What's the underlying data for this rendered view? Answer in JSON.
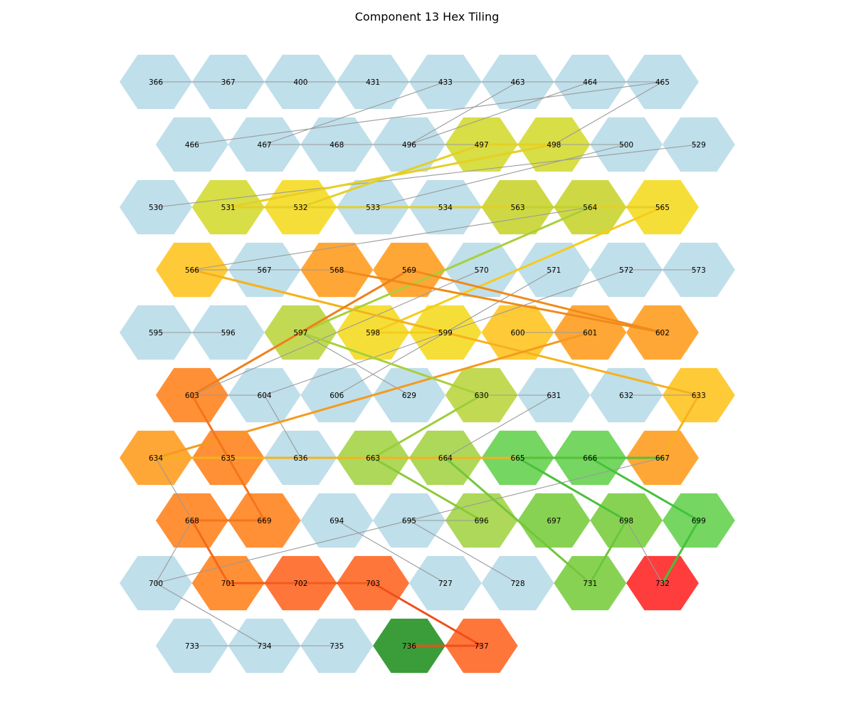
{
  "title": "Component 13 Hex Tiling",
  "colors": {
    "blue": "#bcdde9",
    "yellow": "#f5dc2e",
    "olive": "#d6dc3c",
    "olive2": "#cbd63b",
    "lime": "#bfd84a",
    "lime2": "#a9d650",
    "green": "#6ed45a",
    "green2": "#82d04a",
    "gold": "#ffc72c",
    "orange": "#ffa22b",
    "orange2": "#ff8a2b",
    "redorange": "#ff6f30",
    "red": "#ff3333",
    "darkgreen": "#2f982f"
  },
  "rows": [
    {
      "offset": false,
      "cells": [
        {
          "id": "366",
          "color": "blue"
        },
        {
          "id": "367",
          "color": "blue"
        },
        {
          "id": "400",
          "color": "blue"
        },
        {
          "id": "431",
          "color": "blue"
        },
        {
          "id": "433",
          "color": "blue"
        },
        {
          "id": "463",
          "color": "blue"
        },
        {
          "id": "464",
          "color": "blue"
        },
        {
          "id": "465",
          "color": "blue"
        }
      ]
    },
    {
      "offset": true,
      "cells": [
        {
          "id": "466",
          "color": "blue"
        },
        {
          "id": "467",
          "color": "blue"
        },
        {
          "id": "468",
          "color": "blue"
        },
        {
          "id": "496",
          "color": "blue"
        },
        {
          "id": "497",
          "color": "olive"
        },
        {
          "id": "498",
          "color": "olive"
        },
        {
          "id": "500",
          "color": "blue"
        },
        {
          "id": "529",
          "color": "blue"
        }
      ]
    },
    {
      "offset": false,
      "cells": [
        {
          "id": "530",
          "color": "blue"
        },
        {
          "id": "531",
          "color": "olive"
        },
        {
          "id": "532",
          "color": "yellow"
        },
        {
          "id": "533",
          "color": "blue"
        },
        {
          "id": "534",
          "color": "blue"
        },
        {
          "id": "563",
          "color": "olive2"
        },
        {
          "id": "564",
          "color": "olive2"
        },
        {
          "id": "565",
          "color": "yellow"
        }
      ]
    },
    {
      "offset": true,
      "cells": [
        {
          "id": "566",
          "color": "gold"
        },
        {
          "id": "567",
          "color": "blue"
        },
        {
          "id": "568",
          "color": "orange"
        },
        {
          "id": "569",
          "color": "orange"
        },
        {
          "id": "570",
          "color": "blue"
        },
        {
          "id": "571",
          "color": "blue"
        },
        {
          "id": "572",
          "color": "blue"
        },
        {
          "id": "573",
          "color": "blue"
        }
      ]
    },
    {
      "offset": false,
      "cells": [
        {
          "id": "595",
          "color": "blue"
        },
        {
          "id": "596",
          "color": "blue"
        },
        {
          "id": "597",
          "color": "lime"
        },
        {
          "id": "598",
          "color": "yellow"
        },
        {
          "id": "599",
          "color": "yellow"
        },
        {
          "id": "600",
          "color": "gold"
        },
        {
          "id": "601",
          "color": "orange"
        },
        {
          "id": "602",
          "color": "orange"
        }
      ]
    },
    {
      "offset": true,
      "cells": [
        {
          "id": "603",
          "color": "orange2"
        },
        {
          "id": "604",
          "color": "blue"
        },
        {
          "id": "606",
          "color": "blue"
        },
        {
          "id": "629",
          "color": "blue"
        },
        {
          "id": "630",
          "color": "lime"
        },
        {
          "id": "631",
          "color": "blue"
        },
        {
          "id": "632",
          "color": "blue"
        },
        {
          "id": "633",
          "color": "gold"
        }
      ]
    },
    {
      "offset": false,
      "cells": [
        {
          "id": "634",
          "color": "orange"
        },
        {
          "id": "635",
          "color": "orange2"
        },
        {
          "id": "636",
          "color": "blue"
        },
        {
          "id": "663",
          "color": "lime2"
        },
        {
          "id": "664",
          "color": "lime2"
        },
        {
          "id": "665",
          "color": "green"
        },
        {
          "id": "666",
          "color": "green"
        },
        {
          "id": "667",
          "color": "orange"
        }
      ]
    },
    {
      "offset": true,
      "cells": [
        {
          "id": "668",
          "color": "orange2"
        },
        {
          "id": "669",
          "color": "orange2"
        },
        {
          "id": "694",
          "color": "blue"
        },
        {
          "id": "695",
          "color": "blue"
        },
        {
          "id": "696",
          "color": "lime2"
        },
        {
          "id": "697",
          "color": "green2"
        },
        {
          "id": "698",
          "color": "green2"
        },
        {
          "id": "699",
          "color": "green"
        }
      ]
    },
    {
      "offset": false,
      "cells": [
        {
          "id": "700",
          "color": "blue"
        },
        {
          "id": "701",
          "color": "orange2"
        },
        {
          "id": "702",
          "color": "redorange"
        },
        {
          "id": "703",
          "color": "redorange"
        },
        {
          "id": "727",
          "color": "blue"
        },
        {
          "id": "728",
          "color": "blue"
        },
        {
          "id": "731",
          "color": "green2"
        },
        {
          "id": "732",
          "color": "red"
        }
      ]
    },
    {
      "offset": true,
      "cells": [
        {
          "id": "733",
          "color": "blue"
        },
        {
          "id": "734",
          "color": "blue"
        },
        {
          "id": "735",
          "color": "blue"
        },
        {
          "id": "736",
          "color": "darkgreen"
        },
        {
          "id": "737",
          "color": "redorange"
        }
      ]
    }
  ],
  "edges_gray": [
    [
      "366",
      "400"
    ],
    [
      "367",
      "465"
    ],
    [
      "431",
      "464"
    ],
    [
      "433",
      "467"
    ],
    [
      "463",
      "496"
    ],
    [
      "464",
      "496"
    ],
    [
      "465",
      "466"
    ],
    [
      "465",
      "498"
    ],
    [
      "467",
      "500"
    ],
    [
      "530",
      "529"
    ],
    [
      "533",
      "500"
    ],
    [
      "566",
      "564"
    ],
    [
      "566",
      "567"
    ],
    [
      "567",
      "568"
    ],
    [
      "570",
      "603"
    ],
    [
      "571",
      "606"
    ],
    [
      "572",
      "604"
    ],
    [
      "572",
      "573"
    ],
    [
      "595",
      "596"
    ],
    [
      "597",
      "629"
    ],
    [
      "600",
      "601"
    ],
    [
      "604",
      "603"
    ],
    [
      "604",
      "636"
    ],
    [
      "630",
      "631"
    ],
    [
      "631",
      "664"
    ],
    [
      "632",
      "633"
    ],
    [
      "634",
      "668"
    ],
    [
      "668",
      "700"
    ],
    [
      "700",
      "667"
    ],
    [
      "700",
      "734"
    ],
    [
      "694",
      "727"
    ],
    [
      "695",
      "696"
    ],
    [
      "695",
      "728"
    ],
    [
      "698",
      "732"
    ],
    [
      "733",
      "735"
    ]
  ],
  "edges_colored": [
    [
      "531",
      "498",
      "#e6cf25"
    ],
    [
      "532",
      "497",
      "#e6cf25"
    ],
    [
      "497",
      "498",
      "#e6cf25"
    ],
    [
      "531",
      "565",
      "#e6cf25"
    ],
    [
      "534",
      "565",
      "#e6cf25"
    ],
    [
      "563",
      "564",
      "#c3d22a"
    ],
    [
      "597",
      "564",
      "#a8cf3a"
    ],
    [
      "598",
      "565",
      "#f5cc1a"
    ],
    [
      "566",
      "599",
      "#f5c320"
    ],
    [
      "566",
      "633",
      "#f5b21e"
    ],
    [
      "598",
      "599",
      "#f5cc1a"
    ],
    [
      "568",
      "602",
      "#f08a1a"
    ],
    [
      "569",
      "602",
      "#f08a1a"
    ],
    [
      "569",
      "603",
      "#f07f1a"
    ],
    [
      "601",
      "634",
      "#f59a1e"
    ],
    [
      "603",
      "669",
      "#f5741a"
    ],
    [
      "597",
      "630",
      "#a8cf3a"
    ],
    [
      "630",
      "663",
      "#9ccd3a"
    ],
    [
      "634",
      "667",
      "#f5b21e"
    ],
    [
      "633",
      "667",
      "#f5b21e"
    ],
    [
      "663",
      "696",
      "#8ac93a"
    ],
    [
      "664",
      "731",
      "#74c63a"
    ],
    [
      "665",
      "698",
      "#4dbf3a"
    ],
    [
      "665",
      "667",
      "#55c23a"
    ],
    [
      "666",
      "699",
      "#44c23a"
    ],
    [
      "698",
      "731",
      "#6dc63a"
    ],
    [
      "699",
      "732",
      "#44c23a"
    ],
    [
      "668",
      "669",
      "#f5741a"
    ],
    [
      "668",
      "701",
      "#f5681a"
    ],
    [
      "701",
      "703",
      "#f55a1a"
    ],
    [
      "703",
      "737",
      "#f04e1a"
    ],
    [
      "736",
      "737",
      "#f04e1a"
    ]
  ]
}
